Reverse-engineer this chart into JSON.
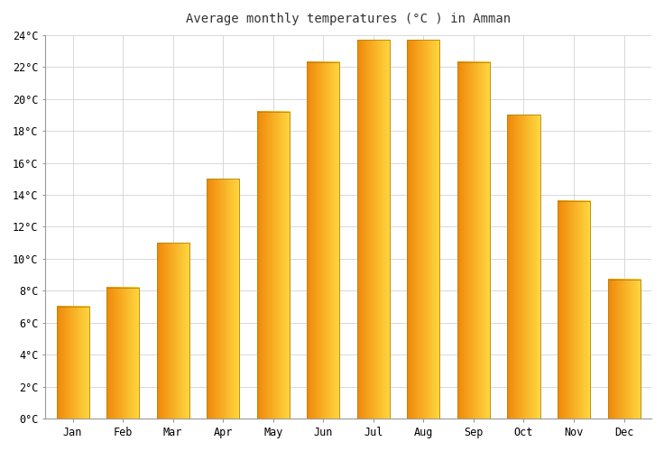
{
  "title": "Average monthly temperatures (°C ) in Amman",
  "months": [
    "Jan",
    "Feb",
    "Mar",
    "Apr",
    "May",
    "Jun",
    "Jul",
    "Aug",
    "Sep",
    "Oct",
    "Nov",
    "Dec"
  ],
  "values": [
    7.0,
    8.2,
    11.0,
    15.0,
    19.2,
    22.3,
    23.7,
    23.7,
    22.3,
    19.0,
    13.6,
    8.7
  ],
  "bar_color_left": "#F0880A",
  "bar_color_right": "#FFD840",
  "ylim": [
    0,
    24
  ],
  "yticks": [
    0,
    2,
    4,
    6,
    8,
    10,
    12,
    14,
    16,
    18,
    20,
    22,
    24
  ],
  "background_color": "#ffffff",
  "grid_color": "#d8d8d8",
  "title_fontsize": 10,
  "tick_fontsize": 8.5,
  "font_family": "monospace"
}
